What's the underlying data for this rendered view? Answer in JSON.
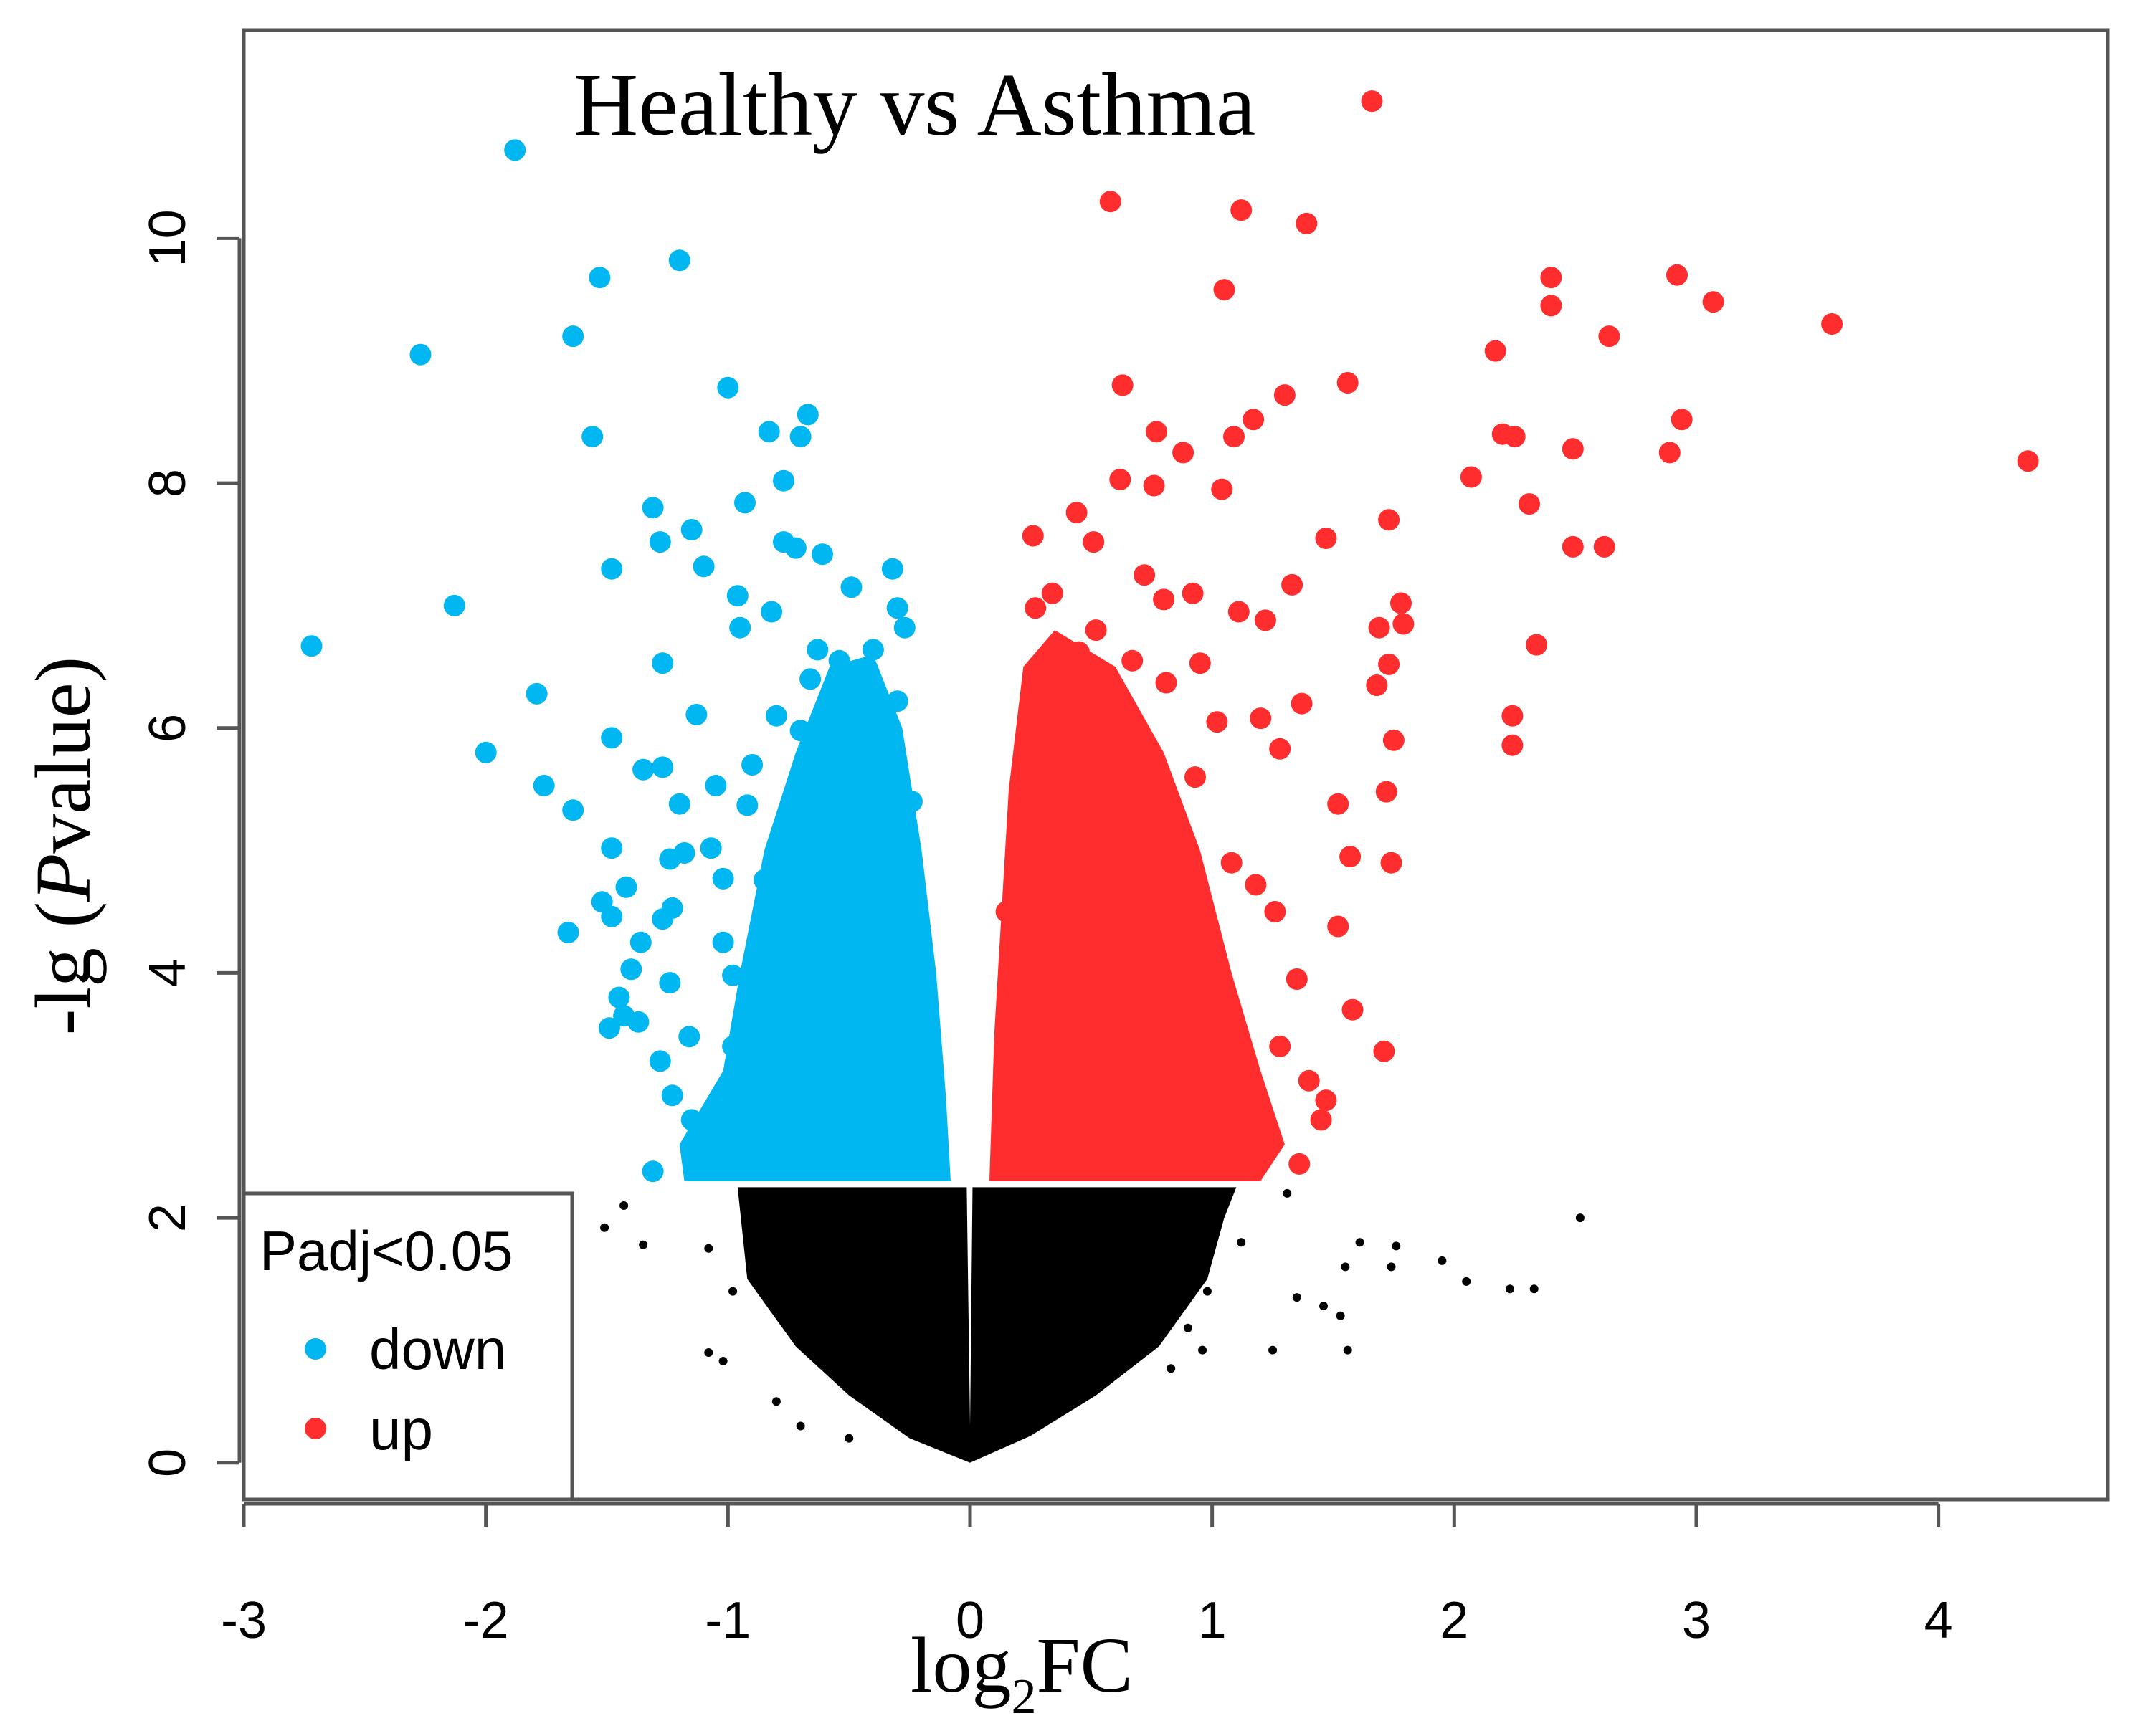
{
  "chart_data": {
    "type": "scatter",
    "title": "Healthy vs Asthma",
    "xlabel": {
      "prefix": "log",
      "sub": "2",
      "suffix": "FC"
    },
    "ylabel": {
      "prefix": "-lg (",
      "italic": "P",
      "suffix": "value)"
    },
    "xlim": [
      -3,
      4.7
    ],
    "ylim": [
      -0.3,
      11.7
    ],
    "x_ticks": [
      -3,
      -2,
      -1,
      0,
      1,
      2,
      3,
      4
    ],
    "x_tick_labels": [
      "-3",
      "-2",
      "-1",
      "0",
      "1",
      "2",
      "3",
      "4"
    ],
    "y_ticks": [
      0,
      2,
      4,
      6,
      8,
      10
    ],
    "y_tick_labels": [
      "0",
      "2",
      "4",
      "6",
      "8",
      "10"
    ],
    "grid": false,
    "legend": {
      "position": "bottom-left",
      "title": "Padj<0.05",
      "items": [
        {
          "label": "down",
          "color": "#00b7f1"
        },
        {
          "label": "up",
          "color": "#ff2d2d"
        }
      ]
    },
    "colors": {
      "down": "#00b7f1",
      "up": "#ff2d2d",
      "not_significant": "#000000"
    },
    "significance_threshold_y": 2.3,
    "series": [
      {
        "name": "down",
        "points": [
          [
            -1.88,
            10.72
          ],
          [
            -1.2,
            9.82
          ],
          [
            -1.53,
            9.68
          ],
          [
            -2.27,
            9.05
          ],
          [
            -1.64,
            9.2
          ],
          [
            -1.0,
            8.78
          ],
          [
            -0.67,
            8.56
          ],
          [
            -0.83,
            8.42
          ],
          [
            -0.7,
            8.38
          ],
          [
            -1.56,
            8.38
          ],
          [
            -0.77,
            8.02
          ],
          [
            -0.93,
            7.84
          ],
          [
            -1.31,
            7.8
          ],
          [
            -1.15,
            7.62
          ],
          [
            -1.28,
            7.52
          ],
          [
            -0.77,
            7.52
          ],
          [
            -0.72,
            7.47
          ],
          [
            -0.61,
            7.42
          ],
          [
            -1.48,
            7.3
          ],
          [
            -1.1,
            7.32
          ],
          [
            -0.32,
            7.3
          ],
          [
            -0.49,
            7.15
          ],
          [
            -2.13,
            7.0
          ],
          [
            -0.96,
            7.08
          ],
          [
            -0.82,
            6.95
          ],
          [
            -0.3,
            6.98
          ],
          [
            -0.27,
            6.82
          ],
          [
            -0.95,
            6.82
          ],
          [
            -2.72,
            6.67
          ],
          [
            -1.27,
            6.53
          ],
          [
            -0.63,
            6.64
          ],
          [
            -0.54,
            6.55
          ],
          [
            -0.4,
            6.64
          ],
          [
            -1.79,
            6.28
          ],
          [
            -0.45,
            6.28
          ],
          [
            -1.13,
            6.11
          ],
          [
            -0.3,
            6.22
          ],
          [
            -1.48,
            5.92
          ],
          [
            -0.7,
            5.98
          ],
          [
            -2.0,
            5.8
          ],
          [
            -1.35,
            5.66
          ],
          [
            -1.27,
            5.68
          ],
          [
            -1.05,
            5.53
          ],
          [
            -1.76,
            5.53
          ],
          [
            -0.92,
            5.37
          ],
          [
            -1.64,
            5.33
          ],
          [
            -1.2,
            5.38
          ],
          [
            -1.48,
            5.02
          ],
          [
            -1.07,
            5.02
          ],
          [
            -1.18,
            4.98
          ],
          [
            -1.24,
            4.93
          ],
          [
            -1.02,
            4.77
          ],
          [
            -0.85,
            4.76
          ],
          [
            -1.42,
            4.7
          ],
          [
            -1.52,
            4.58
          ],
          [
            -1.23,
            4.53
          ],
          [
            -1.48,
            4.46
          ],
          [
            -1.27,
            4.44
          ],
          [
            -1.66,
            4.33
          ],
          [
            -1.02,
            4.25
          ],
          [
            -1.36,
            4.25
          ],
          [
            -1.4,
            4.03
          ],
          [
            -0.98,
            3.98
          ],
          [
            -1.24,
            3.92
          ],
          [
            -1.45,
            3.8
          ],
          [
            -1.43,
            3.65
          ],
          [
            -1.49,
            3.55
          ],
          [
            -1.37,
            3.6
          ],
          [
            -1.16,
            3.48
          ],
          [
            -1.28,
            3.28
          ],
          [
            -1.23,
            3.0
          ],
          [
            -1.31,
            2.38
          ],
          [
            -1.15,
            2.8
          ],
          [
            -1.08,
            2.72
          ],
          [
            -0.9,
            5.7
          ],
          [
            -0.8,
            6.1
          ],
          [
            -0.66,
            6.4
          ],
          [
            -0.58,
            5.0
          ],
          [
            -0.5,
            4.6
          ],
          [
            -0.44,
            3.7
          ],
          [
            -0.36,
            3.2
          ],
          [
            -0.62,
            3.0
          ],
          [
            -0.86,
            2.9
          ],
          [
            -0.73,
            4.2
          ],
          [
            -0.98,
            3.4
          ],
          [
            -0.24,
            5.4
          ],
          [
            -0.28,
            4.5
          ],
          [
            -0.2,
            3.5
          ],
          [
            -0.18,
            2.8
          ]
        ]
      },
      {
        "name": "up",
        "points": [
          [
            1.66,
            11.12
          ],
          [
            0.58,
            10.3
          ],
          [
            1.12,
            10.23
          ],
          [
            1.39,
            10.12
          ],
          [
            2.92,
            9.7
          ],
          [
            2.4,
            9.68
          ],
          [
            1.05,
            9.58
          ],
          [
            3.07,
            9.48
          ],
          [
            2.4,
            9.45
          ],
          [
            3.56,
            9.3
          ],
          [
            2.64,
            9.2
          ],
          [
            2.17,
            9.08
          ],
          [
            0.63,
            8.8
          ],
          [
            1.56,
            8.82
          ],
          [
            1.3,
            8.72
          ],
          [
            2.94,
            8.52
          ],
          [
            1.17,
            8.52
          ],
          [
            0.77,
            8.42
          ],
          [
            1.09,
            8.38
          ],
          [
            2.2,
            8.4
          ],
          [
            2.25,
            8.38
          ],
          [
            2.49,
            8.28
          ],
          [
            2.89,
            8.25
          ],
          [
            0.88,
            8.25
          ],
          [
            4.37,
            8.18
          ],
          [
            2.07,
            8.05
          ],
          [
            0.62,
            8.03
          ],
          [
            0.76,
            7.98
          ],
          [
            1.04,
            7.95
          ],
          [
            2.31,
            7.83
          ],
          [
            0.44,
            7.76
          ],
          [
            1.73,
            7.7
          ],
          [
            0.26,
            7.57
          ],
          [
            0.51,
            7.52
          ],
          [
            1.47,
            7.55
          ],
          [
            2.49,
            7.48
          ],
          [
            2.62,
            7.48
          ],
          [
            0.72,
            7.25
          ],
          [
            0.92,
            7.1
          ],
          [
            1.33,
            7.17
          ],
          [
            0.8,
            7.05
          ],
          [
            1.78,
            7.02
          ],
          [
            0.27,
            6.98
          ],
          [
            1.11,
            6.95
          ],
          [
            1.22,
            6.88
          ],
          [
            1.69,
            6.82
          ],
          [
            1.79,
            6.85
          ],
          [
            2.34,
            6.68
          ],
          [
            0.67,
            6.55
          ],
          [
            0.95,
            6.53
          ],
          [
            1.73,
            6.52
          ],
          [
            0.45,
            6.62
          ],
          [
            1.68,
            6.35
          ],
          [
            0.81,
            6.37
          ],
          [
            1.37,
            6.2
          ],
          [
            1.75,
            5.9
          ],
          [
            2.24,
            6.1
          ],
          [
            2.24,
            5.86
          ],
          [
            1.28,
            5.83
          ],
          [
            1.02,
            6.05
          ],
          [
            1.2,
            6.08
          ],
          [
            0.93,
            5.6
          ],
          [
            1.72,
            5.48
          ],
          [
            1.52,
            5.38
          ],
          [
            0.83,
            5.3
          ],
          [
            1.57,
            4.95
          ],
          [
            1.74,
            4.9
          ],
          [
            1.08,
            4.9
          ],
          [
            1.18,
            4.72
          ],
          [
            1.26,
            4.5
          ],
          [
            1.52,
            4.38
          ],
          [
            1.35,
            3.95
          ],
          [
            1.58,
            3.7
          ],
          [
            1.71,
            3.36
          ],
          [
            1.47,
            2.96
          ],
          [
            1.4,
            3.12
          ],
          [
            1.28,
            3.4
          ],
          [
            1.36,
            2.44
          ],
          [
            1.45,
            2.8
          ],
          [
            0.25,
            6.2
          ],
          [
            0.35,
            5.6
          ],
          [
            0.45,
            5.0
          ],
          [
            0.55,
            4.6
          ],
          [
            0.65,
            4.1
          ],
          [
            0.15,
            4.5
          ],
          [
            0.18,
            3.8
          ],
          [
            0.28,
            3.2
          ],
          [
            0.42,
            2.8
          ],
          [
            0.7,
            3.4
          ],
          [
            0.88,
            3.0
          ],
          [
            1.0,
            4.0
          ],
          [
            0.6,
            5.8
          ],
          [
            0.52,
            6.8
          ],
          [
            0.34,
            7.1
          ]
        ]
      },
      {
        "name": "ns",
        "points": [
          [
            2.52,
            2.0
          ],
          [
            1.61,
            1.8
          ],
          [
            1.76,
            1.77
          ],
          [
            1.95,
            1.65
          ],
          [
            1.74,
            1.6
          ],
          [
            1.55,
            1.6
          ],
          [
            2.05,
            1.48
          ],
          [
            2.23,
            1.42
          ],
          [
            2.33,
            1.42
          ],
          [
            1.35,
            1.35
          ],
          [
            1.46,
            1.28
          ],
          [
            1.53,
            1.2
          ],
          [
            1.56,
            0.92
          ],
          [
            1.25,
            0.92
          ],
          [
            0.96,
            0.92
          ],
          [
            0.83,
            0.77
          ],
          [
            -1.08,
            0.9
          ],
          [
            -1.02,
            0.83
          ],
          [
            -1.51,
            1.92
          ],
          [
            -1.35,
            1.78
          ],
          [
            -0.8,
            0.5
          ],
          [
            -0.7,
            0.3
          ],
          [
            -0.5,
            0.2
          ],
          [
            -1.43,
            2.1
          ],
          [
            -1.08,
            1.75
          ],
          [
            -0.98,
            1.4
          ],
          [
            1.12,
            1.8
          ],
          [
            1.31,
            2.2
          ],
          [
            0.98,
            1.4
          ],
          [
            0.9,
            1.1
          ]
        ]
      }
    ],
    "cloud_fill_lower": [
      [
        -0.96,
        2.25
      ],
      [
        -0.92,
        1.5
      ],
      [
        -0.72,
        0.95
      ],
      [
        -0.5,
        0.55
      ],
      [
        -0.25,
        0.2
      ],
      [
        0.0,
        0.0
      ],
      [
        0.25,
        0.22
      ],
      [
        0.52,
        0.55
      ],
      [
        0.78,
        0.95
      ],
      [
        0.98,
        1.5
      ],
      [
        1.05,
        2.0
      ],
      [
        1.1,
        2.25
      ]
    ],
    "cloud_fill_down": [
      [
        -0.2,
        2.3
      ],
      [
        -1.18,
        2.3
      ],
      [
        -1.2,
        2.6
      ],
      [
        -1.02,
        3.2
      ],
      [
        -0.95,
        4.0
      ],
      [
        -0.85,
        5.0
      ],
      [
        -0.72,
        5.8
      ],
      [
        -0.58,
        6.5
      ],
      [
        -0.4,
        6.6
      ],
      [
        -0.28,
        6.0
      ],
      [
        -0.2,
        5.0
      ],
      [
        -0.14,
        4.0
      ],
      [
        -0.1,
        3.0
      ],
      [
        -0.08,
        2.3
      ]
    ],
    "cloud_fill_up": [
      [
        0.08,
        2.3
      ],
      [
        1.2,
        2.3
      ],
      [
        1.3,
        2.6
      ],
      [
        1.2,
        3.2
      ],
      [
        1.08,
        4.0
      ],
      [
        0.95,
        5.0
      ],
      [
        0.8,
        5.8
      ],
      [
        0.6,
        6.5
      ],
      [
        0.35,
        6.8
      ],
      [
        0.22,
        6.5
      ],
      [
        0.16,
        5.5
      ],
      [
        0.13,
        4.5
      ],
      [
        0.1,
        3.5
      ],
      [
        0.08,
        2.3
      ]
    ]
  }
}
